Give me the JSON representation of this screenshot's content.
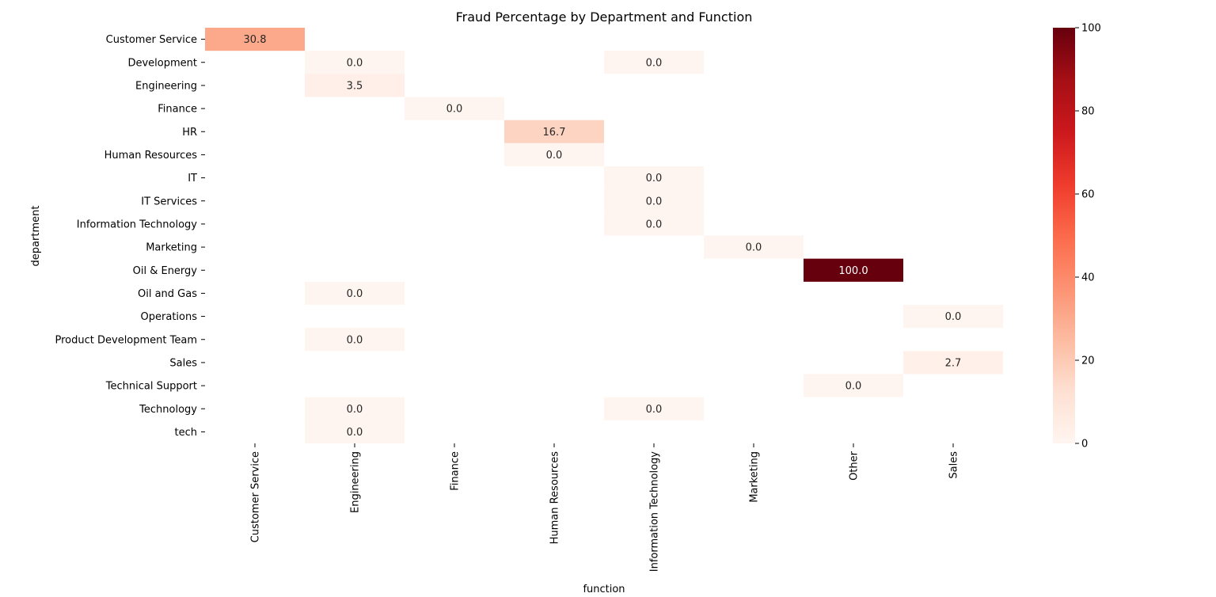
{
  "chart_data": {
    "type": "heatmap",
    "title": "Fraud Percentage by Department and Function",
    "xlabel": "function",
    "ylabel": "department",
    "x_categories": [
      "Customer Service",
      "Engineering",
      "Finance",
      "Human Resources",
      "Information Technology",
      "Marketing",
      "Other",
      "Sales"
    ],
    "y_categories": [
      "Customer Service",
      "Development",
      "Engineering",
      "Finance",
      "HR",
      "Human Resources",
      "IT",
      "IT Services",
      "Information Technology",
      "Marketing",
      "Oil & Energy",
      "Oil and Gas",
      "Operations",
      "Product Development Team",
      "Sales",
      "Technical Support",
      "Technology",
      "tech"
    ],
    "cells": [
      {
        "row": "Customer Service",
        "col": "Customer Service",
        "value": 30.8,
        "label": "30.8"
      },
      {
        "row": "Development",
        "col": "Engineering",
        "value": 0.0,
        "label": "0.0"
      },
      {
        "row": "Development",
        "col": "Information Technology",
        "value": 0.0,
        "label": "0.0"
      },
      {
        "row": "Engineering",
        "col": "Engineering",
        "value": 3.5,
        "label": "3.5"
      },
      {
        "row": "Finance",
        "col": "Finance",
        "value": 0.0,
        "label": "0.0"
      },
      {
        "row": "HR",
        "col": "Human Resources",
        "value": 16.7,
        "label": "16.7"
      },
      {
        "row": "Human Resources",
        "col": "Human Resources",
        "value": 0.0,
        "label": "0.0"
      },
      {
        "row": "IT",
        "col": "Information Technology",
        "value": 0.0,
        "label": "0.0"
      },
      {
        "row": "IT Services",
        "col": "Information Technology",
        "value": 0.0,
        "label": "0.0"
      },
      {
        "row": "Information Technology",
        "col": "Information Technology",
        "value": 0.0,
        "label": "0.0"
      },
      {
        "row": "Marketing",
        "col": "Marketing",
        "value": 0.0,
        "label": "0.0"
      },
      {
        "row": "Oil & Energy",
        "col": "Other",
        "value": 100.0,
        "label": "100.0"
      },
      {
        "row": "Oil and Gas",
        "col": "Engineering",
        "value": 0.0,
        "label": "0.0"
      },
      {
        "row": "Operations",
        "col": "Sales",
        "value": 0.0,
        "label": "0.0"
      },
      {
        "row": "Product Development Team",
        "col": "Engineering",
        "value": 0.0,
        "label": "0.0"
      },
      {
        "row": "Sales",
        "col": "Sales",
        "value": 2.7,
        "label": "2.7"
      },
      {
        "row": "Technical Support",
        "col": "Other",
        "value": 0.0,
        "label": "0.0"
      },
      {
        "row": "Technology",
        "col": "Engineering",
        "value": 0.0,
        "label": "0.0"
      },
      {
        "row": "Technology",
        "col": "Information Technology",
        "value": 0.0,
        "label": "0.0"
      },
      {
        "row": "tech",
        "col": "Engineering",
        "value": 0.0,
        "label": "0.0"
      }
    ],
    "colorbar": {
      "range": [
        0,
        100
      ],
      "ticks": [
        "0",
        "20",
        "40",
        "60",
        "80",
        "100"
      ],
      "colormap": "Reds",
      "colors": [
        "#fff5f0",
        "#fee0d2",
        "#fcbba1",
        "#fc9272",
        "#fb6a4a",
        "#ef3b2c",
        "#cb181d",
        "#a50f15",
        "#67000d"
      ]
    },
    "grid": false
  }
}
